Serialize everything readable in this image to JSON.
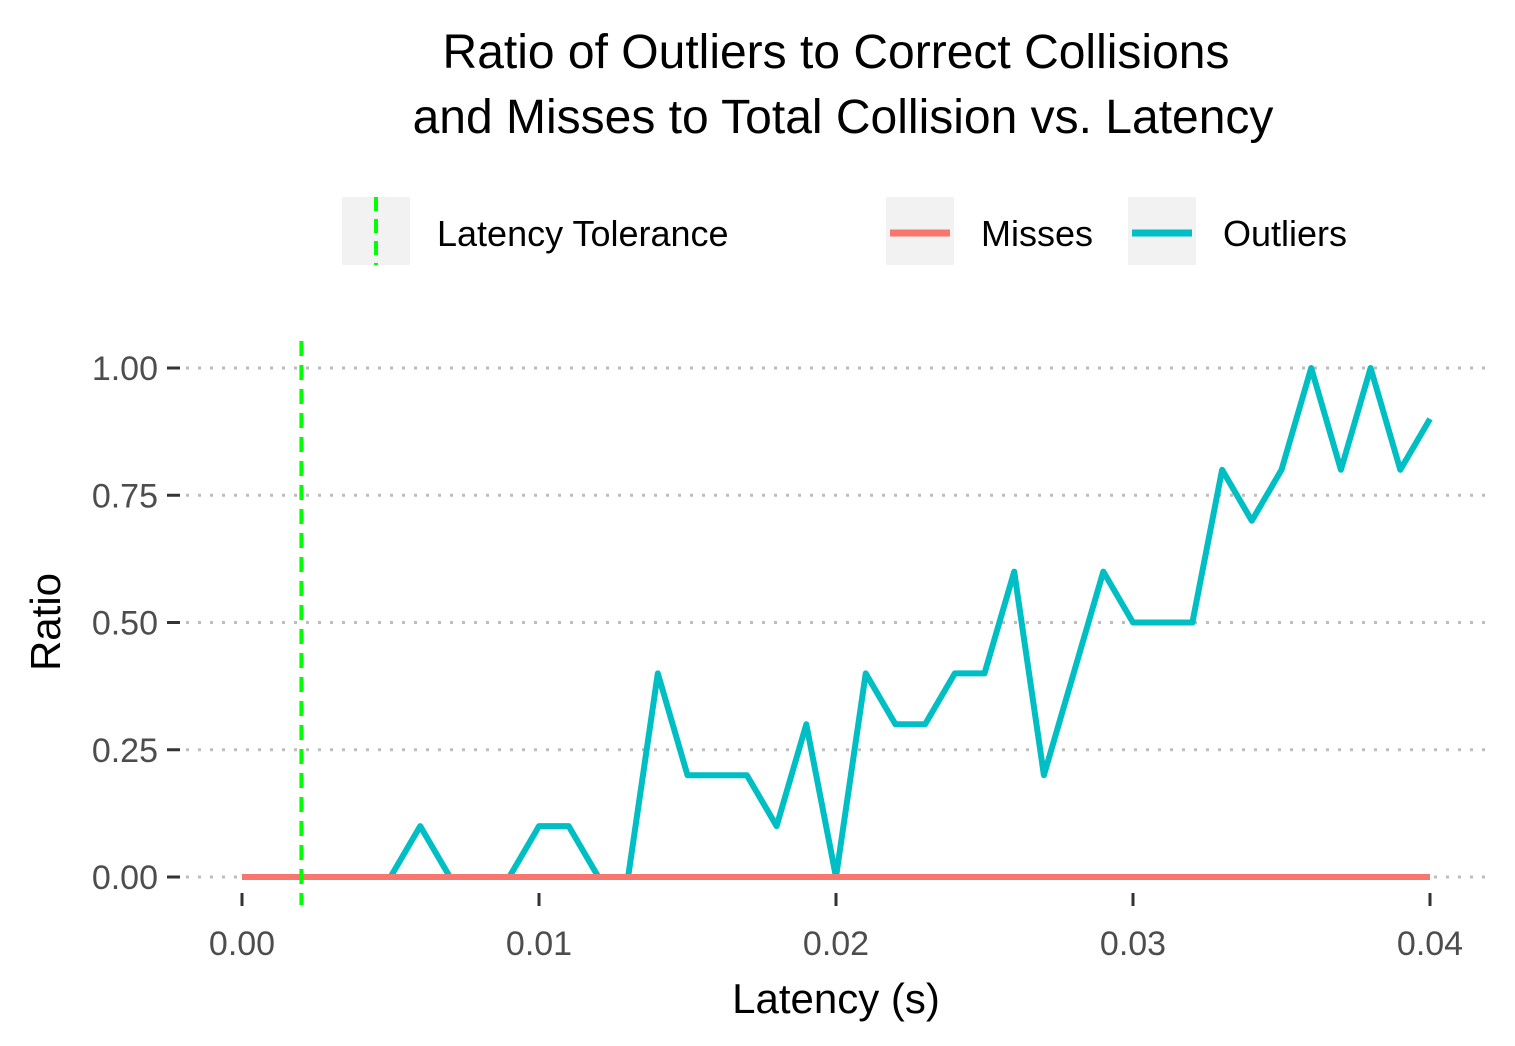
{
  "chart_data": {
    "type": "line",
    "title_lines": [
      "Ratio of Outliers to Correct Collisions",
      "and Misses to Total Collision vs. Latency"
    ],
    "xlabel": "Latency (s)",
    "ylabel": "Ratio",
    "xlim": [
      0.0,
      0.04
    ],
    "ylim": [
      0.0,
      1.0
    ],
    "x_ticks": [
      0.0,
      0.01,
      0.02,
      0.03,
      0.04
    ],
    "x_tick_labels": [
      "0.00",
      "0.01",
      "0.02",
      "0.03",
      "0.04"
    ],
    "y_ticks": [
      0.0,
      0.25,
      0.5,
      0.75,
      1.0
    ],
    "y_tick_labels": [
      "0.00",
      "0.25",
      "0.50",
      "0.75",
      "1.00"
    ],
    "grid": "horizontal dotted major lines",
    "legend_position": "top",
    "legend": [
      {
        "label": "Latency Tolerance",
        "kind": "vline-dashed",
        "color": "#00ff00"
      },
      {
        "label": "Misses",
        "kind": "line",
        "color": "#f8766d"
      },
      {
        "label": "Outliers",
        "kind": "line",
        "color": "#00bfc4"
      }
    ],
    "vline": {
      "label": "Latency Tolerance",
      "x": 0.002,
      "color": "#00ff00",
      "style": "dashed"
    },
    "x": [
      0.0,
      0.001,
      0.002,
      0.003,
      0.004,
      0.005,
      0.006,
      0.007,
      0.008,
      0.009,
      0.01,
      0.011,
      0.012,
      0.013,
      0.014,
      0.015,
      0.016,
      0.017,
      0.018,
      0.019,
      0.02,
      0.021,
      0.022,
      0.023,
      0.024,
      0.025,
      0.026,
      0.027,
      0.028,
      0.029,
      0.03,
      0.031,
      0.032,
      0.033,
      0.034,
      0.035,
      0.036,
      0.037,
      0.038,
      0.039,
      0.04
    ],
    "series": [
      {
        "name": "Outliers",
        "color": "#00bfc4",
        "values": [
          0,
          0,
          0,
          0,
          0,
          0,
          0.1,
          0,
          0,
          0,
          0.1,
          0.1,
          0,
          0,
          0.4,
          0.2,
          0.2,
          0.2,
          0.1,
          0.3,
          0,
          0.4,
          0.3,
          0.3,
          0.4,
          0.4,
          0.6,
          0.2,
          0.4,
          0.6,
          0.5,
          0.5,
          0.5,
          0.8,
          0.7,
          0.8,
          1.0,
          0.8,
          1.0,
          0.8,
          0.9
        ]
      },
      {
        "name": "Misses",
        "color": "#f8766d",
        "values": [
          0,
          0,
          0,
          0,
          0,
          0,
          0,
          0,
          0,
          0,
          0,
          0,
          0,
          0,
          0,
          0,
          0,
          0,
          0,
          0,
          0,
          0,
          0,
          0,
          0,
          0,
          0,
          0,
          0,
          0,
          0,
          0,
          0,
          0,
          0,
          0,
          0,
          0,
          0,
          0,
          0
        ]
      }
    ]
  }
}
